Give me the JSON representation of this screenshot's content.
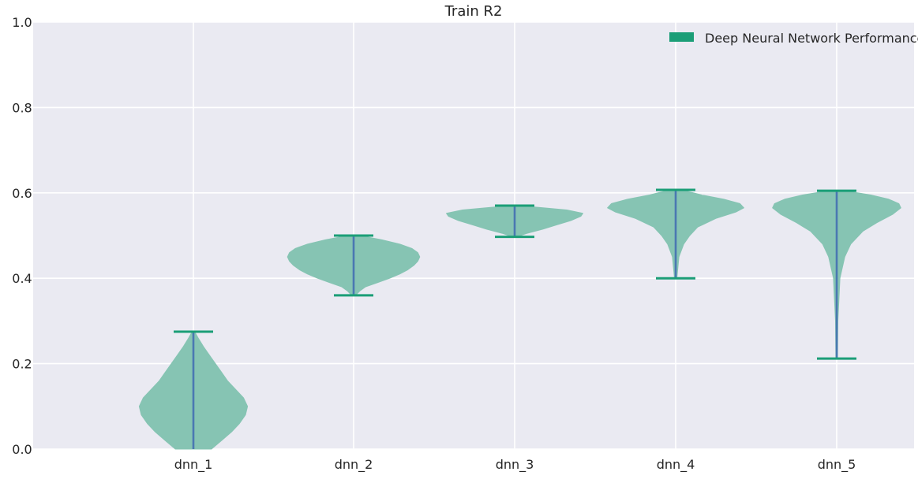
{
  "chart_data": {
    "type": "violin",
    "title": "Train R2",
    "xlabel": "",
    "ylabel": "",
    "ylim": [
      0,
      1.0
    ],
    "yticks": [
      "0.0",
      "0.2",
      "0.4",
      "0.6",
      "0.8",
      "1.0"
    ],
    "grid": true,
    "legend": {
      "label": "Deep Neural Network Performance",
      "placement": "top-right"
    },
    "colors": {
      "body": "#86c4b3",
      "extrema": "#1b9e77",
      "median": "#4a78b2",
      "background": "#eaeaf2",
      "grid": "#ffffff",
      "legend_patch": "#1b9e77"
    },
    "categories": [
      "dnn_1",
      "dnn_2",
      "dnn_3",
      "dnn_4",
      "dnn_5"
    ],
    "violins": [
      {
        "name": "dnn_1",
        "min": 0.0,
        "max": 0.275,
        "profile": [
          [
            0.0,
            0.045
          ],
          [
            0.02,
            0.07
          ],
          [
            0.04,
            0.095
          ],
          [
            0.06,
            0.115
          ],
          [
            0.08,
            0.13
          ],
          [
            0.1,
            0.135
          ],
          [
            0.12,
            0.125
          ],
          [
            0.14,
            0.105
          ],
          [
            0.16,
            0.085
          ],
          [
            0.18,
            0.07
          ],
          [
            0.2,
            0.055
          ],
          [
            0.22,
            0.04
          ],
          [
            0.24,
            0.025
          ],
          [
            0.26,
            0.012
          ],
          [
            0.275,
            0.003
          ]
        ]
      },
      {
        "name": "dnn_2",
        "min": 0.36,
        "max": 0.5,
        "profile": [
          [
            0.36,
            0.005
          ],
          [
            0.37,
            0.015
          ],
          [
            0.38,
            0.03
          ],
          [
            0.39,
            0.06
          ],
          [
            0.4,
            0.09
          ],
          [
            0.41,
            0.115
          ],
          [
            0.42,
            0.135
          ],
          [
            0.43,
            0.15
          ],
          [
            0.44,
            0.16
          ],
          [
            0.45,
            0.165
          ],
          [
            0.46,
            0.16
          ],
          [
            0.47,
            0.145
          ],
          [
            0.48,
            0.115
          ],
          [
            0.49,
            0.07
          ],
          [
            0.5,
            0.015
          ]
        ]
      },
      {
        "name": "dnn_3",
        "min": 0.497,
        "max": 0.57,
        "profile": [
          [
            0.497,
            0.005
          ],
          [
            0.505,
            0.03
          ],
          [
            0.515,
            0.07
          ],
          [
            0.525,
            0.105
          ],
          [
            0.535,
            0.14
          ],
          [
            0.545,
            0.165
          ],
          [
            0.552,
            0.17
          ],
          [
            0.56,
            0.13
          ],
          [
            0.566,
            0.06
          ],
          [
            0.57,
            0.01
          ]
        ]
      },
      {
        "name": "dnn_4",
        "min": 0.4,
        "max": 0.607,
        "profile": [
          [
            0.4,
            0.003
          ],
          [
            0.45,
            0.008
          ],
          [
            0.48,
            0.02
          ],
          [
            0.5,
            0.035
          ],
          [
            0.52,
            0.055
          ],
          [
            0.54,
            0.1
          ],
          [
            0.555,
            0.15
          ],
          [
            0.565,
            0.17
          ],
          [
            0.575,
            0.16
          ],
          [
            0.585,
            0.12
          ],
          [
            0.595,
            0.065
          ],
          [
            0.607,
            0.015
          ]
        ]
      },
      {
        "name": "dnn_5",
        "min": 0.212,
        "max": 0.605,
        "profile": [
          [
            0.212,
            0.002
          ],
          [
            0.3,
            0.003
          ],
          [
            0.4,
            0.008
          ],
          [
            0.45,
            0.02
          ],
          [
            0.48,
            0.035
          ],
          [
            0.51,
            0.065
          ],
          [
            0.53,
            0.1
          ],
          [
            0.55,
            0.14
          ],
          [
            0.565,
            0.16
          ],
          [
            0.575,
            0.155
          ],
          [
            0.585,
            0.13
          ],
          [
            0.595,
            0.085
          ],
          [
            0.605,
            0.02
          ]
        ]
      }
    ]
  }
}
